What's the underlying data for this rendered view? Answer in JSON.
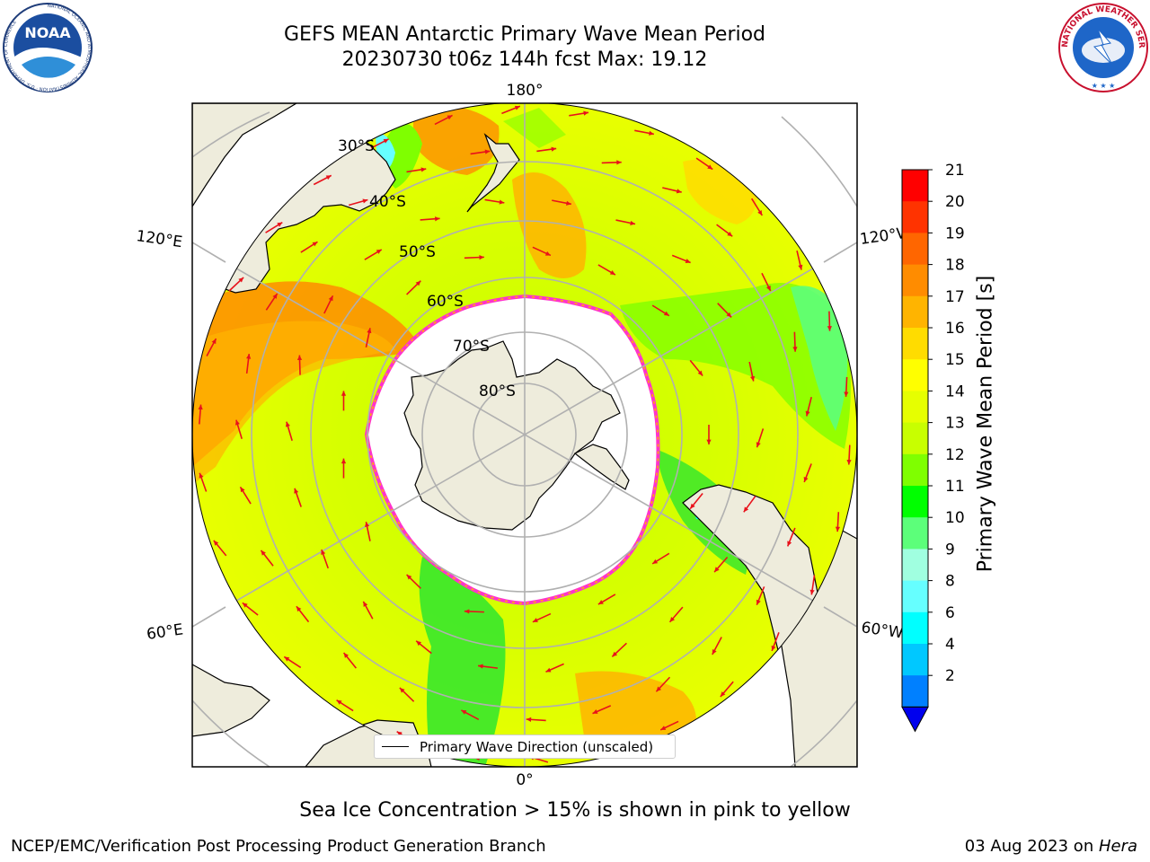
{
  "title": {
    "line1": "GEFS MEAN Antarctic Primary Wave Mean Period",
    "line2": "20230730 t06z 144h fcst   Max: 19.12"
  },
  "logos": {
    "noaa": "NOAA",
    "noaa_ring": "NATIONAL OCEANIC AND ATMOSPHERIC ADMINISTRATION · U.S. DEPARTMENT OF COMMERCE",
    "nws_ring": "NATIONAL WEATHER SERVICE"
  },
  "map": {
    "projection": "south-polar-stereographic",
    "longitude_labels": [
      "180°",
      "120°E",
      "120°W",
      "60°E",
      "60°W",
      "0°"
    ],
    "latitude_labels": [
      "30°S",
      "40°S",
      "50°S",
      "60°S",
      "70°S",
      "80°S"
    ],
    "legend_label": "Primary Wave Direction (unscaled)",
    "arrow_color": "#e8121b",
    "land_color": "#eeecdc",
    "ice_edge_color": "#ff33cc"
  },
  "colorbar": {
    "label": "Primary Wave Mean Period [s]",
    "ticks": [
      "21",
      "20",
      "19",
      "18",
      "17",
      "16",
      "15",
      "14",
      "13",
      "12",
      "11",
      "10",
      "9",
      "8",
      "6",
      "4",
      "2"
    ],
    "colors": [
      "#ff0000",
      "#ff3300",
      "#ff6600",
      "#ff8c00",
      "#ffb400",
      "#ffdc00",
      "#ffff00",
      "#e6ff00",
      "#c8ff00",
      "#7fff00",
      "#00ff00",
      "#5cff7a",
      "#a0ffe0",
      "#66ffff",
      "#00ffff",
      "#00c8ff",
      "#0080ff"
    ],
    "extend_color": "#0000ee"
  },
  "subtitle": "Sea Ice Concentration > 15% is shown in pink to yellow",
  "footer": {
    "left": "NCEP/EMC/Verification Post Processing Product Generation Branch",
    "date": "03 Aug 2023 on ",
    "host": "Hera"
  }
}
